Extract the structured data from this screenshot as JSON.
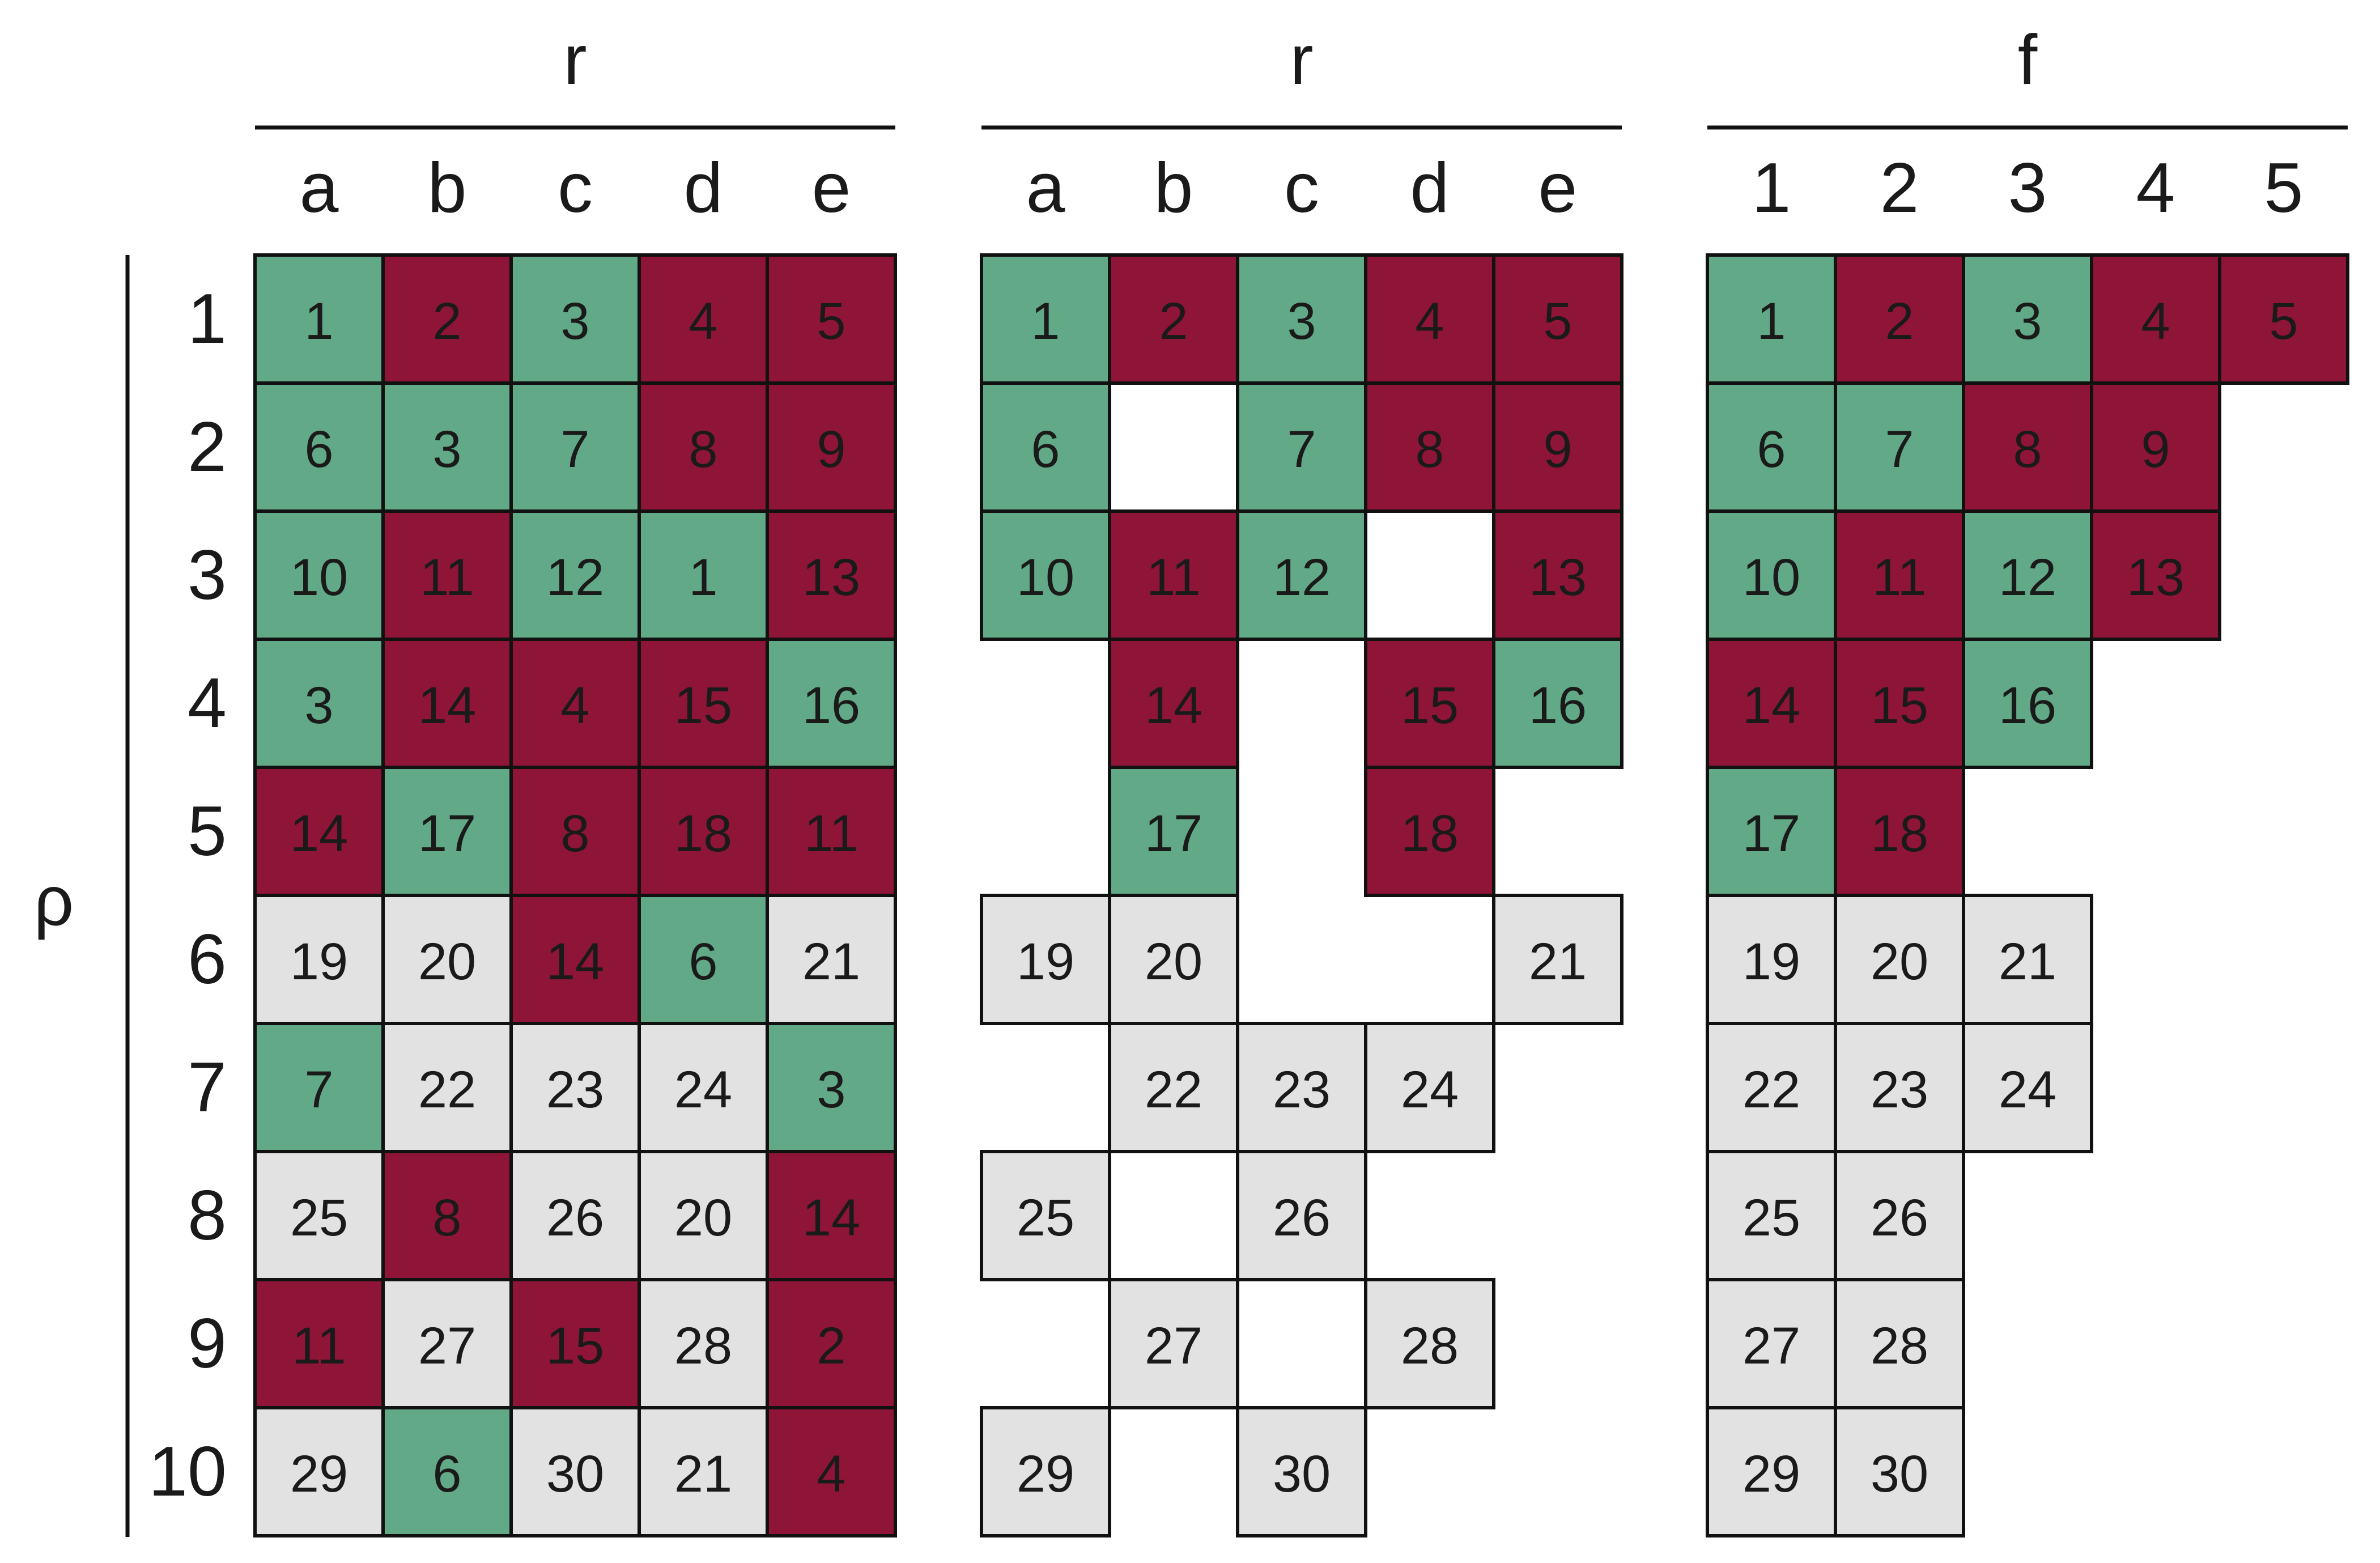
{
  "colors": {
    "green": "#62a988",
    "red": "#8e1538",
    "gray": "#e2e2e2",
    "white": "#ffffff",
    "grid": "#111111"
  },
  "row_axis_label": "ρ",
  "row_labels": [
    "1",
    "2",
    "3",
    "4",
    "5",
    "6",
    "7",
    "8",
    "9",
    "10"
  ],
  "panels": [
    {
      "title": "r",
      "columns": [
        "a",
        "b",
        "c",
        "d",
        "e"
      ],
      "cells": [
        [
          [
            1,
            "g"
          ],
          [
            2,
            "r"
          ],
          [
            3,
            "g"
          ],
          [
            4,
            "r"
          ],
          [
            5,
            "r"
          ]
        ],
        [
          [
            6,
            "g"
          ],
          [
            3,
            "g"
          ],
          [
            7,
            "g"
          ],
          [
            8,
            "r"
          ],
          [
            9,
            "r"
          ]
        ],
        [
          [
            10,
            "g"
          ],
          [
            11,
            "r"
          ],
          [
            12,
            "g"
          ],
          [
            1,
            "g"
          ],
          [
            13,
            "r"
          ]
        ],
        [
          [
            3,
            "g"
          ],
          [
            14,
            "r"
          ],
          [
            4,
            "r"
          ],
          [
            15,
            "r"
          ],
          [
            16,
            "g"
          ]
        ],
        [
          [
            14,
            "r"
          ],
          [
            17,
            "g"
          ],
          [
            8,
            "r"
          ],
          [
            18,
            "r"
          ],
          [
            11,
            "r"
          ]
        ],
        [
          [
            19,
            "n"
          ],
          [
            20,
            "n"
          ],
          [
            14,
            "r"
          ],
          [
            6,
            "g"
          ],
          [
            21,
            "n"
          ]
        ],
        [
          [
            7,
            "g"
          ],
          [
            22,
            "n"
          ],
          [
            23,
            "n"
          ],
          [
            24,
            "n"
          ],
          [
            3,
            "g"
          ]
        ],
        [
          [
            25,
            "n"
          ],
          [
            8,
            "r"
          ],
          [
            26,
            "n"
          ],
          [
            20,
            "n"
          ],
          [
            14,
            "r"
          ]
        ],
        [
          [
            11,
            "r"
          ],
          [
            27,
            "n"
          ],
          [
            15,
            "r"
          ],
          [
            28,
            "n"
          ],
          [
            2,
            "r"
          ]
        ],
        [
          [
            29,
            "n"
          ],
          [
            6,
            "g"
          ],
          [
            30,
            "n"
          ],
          [
            21,
            "n"
          ],
          [
            4,
            "r"
          ]
        ]
      ]
    },
    {
      "title": "r",
      "columns": [
        "a",
        "b",
        "c",
        "d",
        "e"
      ],
      "cells": [
        [
          [
            1,
            "g"
          ],
          [
            2,
            "r"
          ],
          [
            3,
            "g"
          ],
          [
            4,
            "r"
          ],
          [
            5,
            "r"
          ]
        ],
        [
          [
            6,
            "g"
          ],
          [
            "",
            "w"
          ],
          [
            7,
            "g"
          ],
          [
            8,
            "r"
          ],
          [
            9,
            "r"
          ]
        ],
        [
          [
            10,
            "g"
          ],
          [
            11,
            "r"
          ],
          [
            12,
            "g"
          ],
          [
            "",
            "w"
          ],
          [
            13,
            "r"
          ]
        ],
        [
          null,
          [
            14,
            "r"
          ],
          null,
          [
            15,
            "r"
          ],
          [
            16,
            "g"
          ]
        ],
        [
          null,
          [
            17,
            "g"
          ],
          null,
          [
            18,
            "r"
          ],
          null
        ],
        [
          [
            19,
            "n"
          ],
          [
            20,
            "n"
          ],
          null,
          null,
          [
            21,
            "n"
          ]
        ],
        [
          null,
          [
            22,
            "n"
          ],
          [
            23,
            "n"
          ],
          [
            24,
            "n"
          ],
          null
        ],
        [
          [
            25,
            "n"
          ],
          null,
          [
            26,
            "n"
          ],
          null,
          null
        ],
        [
          null,
          [
            27,
            "n"
          ],
          null,
          [
            28,
            "n"
          ],
          null
        ],
        [
          [
            29,
            "n"
          ],
          null,
          [
            30,
            "n"
          ],
          null,
          null
        ]
      ]
    },
    {
      "title": "f",
      "columns": [
        "1",
        "2",
        "3",
        "4",
        "5"
      ],
      "cells": [
        [
          [
            1,
            "g"
          ],
          [
            2,
            "r"
          ],
          [
            3,
            "g"
          ],
          [
            4,
            "r"
          ],
          [
            5,
            "r"
          ]
        ],
        [
          [
            6,
            "g"
          ],
          [
            7,
            "g"
          ],
          [
            8,
            "r"
          ],
          [
            9,
            "r"
          ],
          null
        ],
        [
          [
            10,
            "g"
          ],
          [
            11,
            "r"
          ],
          [
            12,
            "g"
          ],
          [
            13,
            "r"
          ],
          null
        ],
        [
          [
            14,
            "r"
          ],
          [
            15,
            "r"
          ],
          [
            16,
            "g"
          ],
          null,
          null
        ],
        [
          [
            17,
            "g"
          ],
          [
            18,
            "r"
          ],
          null,
          null,
          null
        ],
        [
          [
            19,
            "n"
          ],
          [
            20,
            "n"
          ],
          [
            21,
            "n"
          ],
          null,
          null
        ],
        [
          [
            22,
            "n"
          ],
          [
            23,
            "n"
          ],
          [
            24,
            "n"
          ],
          null,
          null
        ],
        [
          [
            25,
            "n"
          ],
          [
            26,
            "n"
          ],
          null,
          null,
          null
        ],
        [
          [
            27,
            "n"
          ],
          [
            28,
            "n"
          ],
          null,
          null,
          null
        ],
        [
          [
            29,
            "n"
          ],
          [
            30,
            "n"
          ],
          null,
          null,
          null
        ]
      ]
    }
  ]
}
